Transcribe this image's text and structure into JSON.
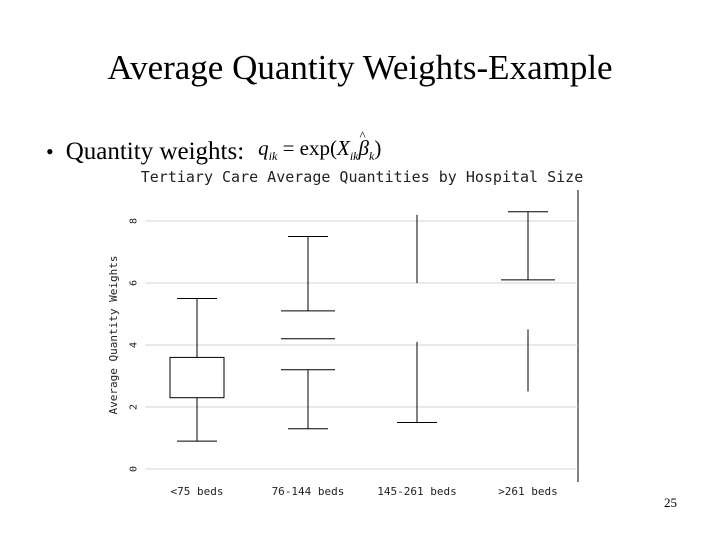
{
  "slide": {
    "title": "Average Quantity Weights-Example",
    "bullet": "Quantity weights:",
    "page_number": "25"
  },
  "chart_data": {
    "type": "box",
    "title": "Tertiary Care Average Quantities by Hospital Size",
    "ylabel": "Average Quantity Weights",
    "xlabel": "",
    "ylim": [
      0,
      8
    ],
    "yticks": [
      0,
      2,
      4,
      6,
      8
    ],
    "grid": true,
    "categories": [
      "<75 beds",
      "76-144 beds",
      "145-261 beds",
      ">261 beds"
    ],
    "boxes": [
      {
        "min": 0.9,
        "q1": 2.3,
        "median": 2.3,
        "q3": 3.6,
        "max": 5.5
      },
      {
        "min": 1.3,
        "q1": 3.2,
        "median": 4.2,
        "q3": 5.1,
        "max": 7.5
      },
      {
        "min": 1.5,
        "q1": null,
        "median": null,
        "q3": null,
        "max": 8.2
      },
      {
        "min": 2.5,
        "q1": 6.1,
        "median": 6.1,
        "q3": 6.1,
        "max": 8.3
      }
    ]
  }
}
